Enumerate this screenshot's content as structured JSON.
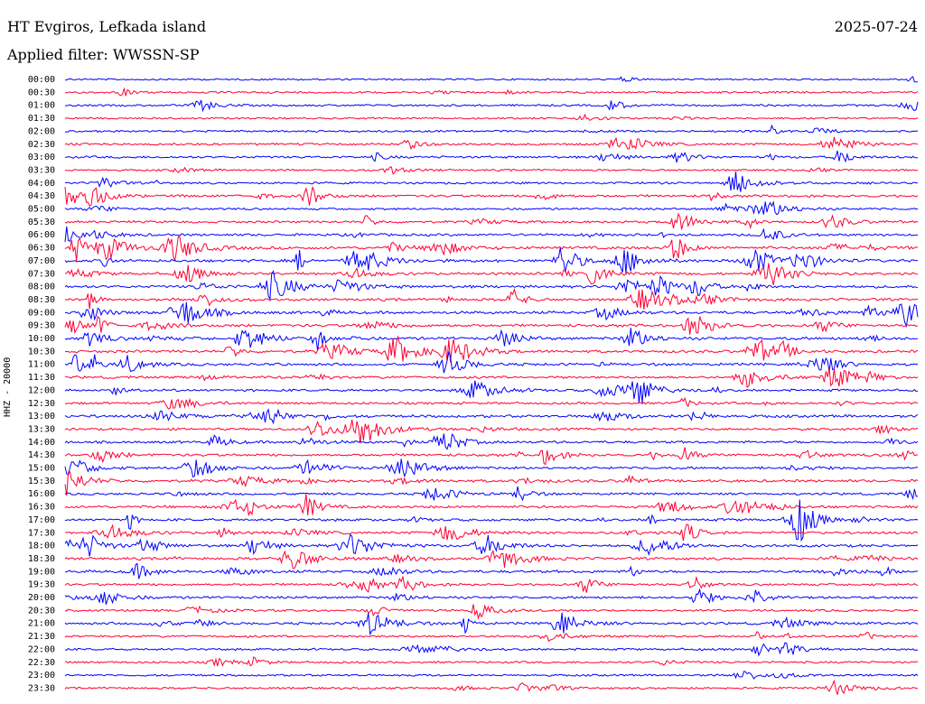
{
  "header": {
    "station": "HT Evgiros, Lefkada island",
    "date": "2025-07-24",
    "filter": "Applied filter: WWSSN-SP"
  },
  "chart_data": {
    "type": "line",
    "title": "HT Evgiros, Lefkada island",
    "ylabel": "HHZ - 20000",
    "trace_colors": [
      "#0000ff",
      "#ff0033"
    ],
    "rows": [
      {
        "label": "00:00",
        "color": "#0000ff",
        "level": 0.1
      },
      {
        "label": "00:30",
        "color": "#ff0033",
        "level": 0.3
      },
      {
        "label": "01:00",
        "color": "#0000ff",
        "level": 0.3
      },
      {
        "label": "01:30",
        "color": "#ff0033",
        "level": 0.15
      },
      {
        "label": "02:00",
        "color": "#0000ff",
        "level": 0.25
      },
      {
        "label": "02:30",
        "color": "#ff0033",
        "level": 0.4
      },
      {
        "label": "03:00",
        "color": "#0000ff",
        "level": 0.5
      },
      {
        "label": "03:30",
        "color": "#ff0033",
        "level": 0.25
      },
      {
        "label": "04:00",
        "color": "#0000ff",
        "level": 0.4
      },
      {
        "label": "04:30",
        "color": "#ff0033",
        "level": 0.6
      },
      {
        "label": "05:00",
        "color": "#0000ff",
        "level": 0.35
      },
      {
        "label": "05:30",
        "color": "#ff0033",
        "level": 0.5
      },
      {
        "label": "06:00",
        "color": "#0000ff",
        "level": 0.6
      },
      {
        "label": "06:30",
        "color": "#ff0033",
        "level": 0.9
      },
      {
        "label": "07:00",
        "color": "#0000ff",
        "level": 0.9
      },
      {
        "label": "07:30",
        "color": "#ff0033",
        "level": 0.7
      },
      {
        "label": "08:00",
        "color": "#0000ff",
        "level": 0.8
      },
      {
        "label": "08:30",
        "color": "#ff0033",
        "level": 0.7
      },
      {
        "label": "09:00",
        "color": "#0000ff",
        "level": 0.8
      },
      {
        "label": "09:30",
        "color": "#ff0033",
        "level": 0.8
      },
      {
        "label": "10:00",
        "color": "#0000ff",
        "level": 0.9
      },
      {
        "label": "10:30",
        "color": "#ff0033",
        "level": 0.8
      },
      {
        "label": "11:00",
        "color": "#0000ff",
        "level": 0.7
      },
      {
        "label": "11:30",
        "color": "#ff0033",
        "level": 0.6
      },
      {
        "label": "12:00",
        "color": "#0000ff",
        "level": 0.6
      },
      {
        "label": "12:30",
        "color": "#ff0033",
        "level": 0.5
      },
      {
        "label": "13:00",
        "color": "#0000ff",
        "level": 0.8
      },
      {
        "label": "13:30",
        "color": "#ff0033",
        "level": 0.5
      },
      {
        "label": "14:00",
        "color": "#0000ff",
        "level": 0.6
      },
      {
        "label": "14:30",
        "color": "#ff0033",
        "level": 0.7
      },
      {
        "label": "15:00",
        "color": "#0000ff",
        "level": 0.6
      },
      {
        "label": "15:30",
        "color": "#ff0033",
        "level": 0.7
      },
      {
        "label": "16:00",
        "color": "#0000ff",
        "level": 0.5
      },
      {
        "label": "16:30",
        "color": "#ff0033",
        "level": 0.7
      },
      {
        "label": "17:00",
        "color": "#0000ff",
        "level": 0.7
      },
      {
        "label": "17:30",
        "color": "#ff0033",
        "level": 0.6
      },
      {
        "label": "18:00",
        "color": "#0000ff",
        "level": 0.7
      },
      {
        "label": "18:30",
        "color": "#ff0033",
        "level": 0.7
      },
      {
        "label": "19:00",
        "color": "#0000ff",
        "level": 0.7
      },
      {
        "label": "19:30",
        "color": "#ff0033",
        "level": 0.5
      },
      {
        "label": "20:00",
        "color": "#0000ff",
        "level": 0.6
      },
      {
        "label": "20:30",
        "color": "#ff0033",
        "level": 0.4
      },
      {
        "label": "21:00",
        "color": "#0000ff",
        "level": 0.6
      },
      {
        "label": "21:30",
        "color": "#ff0033",
        "level": 0.4
      },
      {
        "label": "22:00",
        "color": "#0000ff",
        "level": 0.4
      },
      {
        "label": "22:30",
        "color": "#ff0033",
        "level": 0.3
      },
      {
        "label": "23:00",
        "color": "#0000ff",
        "level": 0.3
      },
      {
        "label": "23:30",
        "color": "#ff0033",
        "level": 0.35
      }
    ]
  }
}
